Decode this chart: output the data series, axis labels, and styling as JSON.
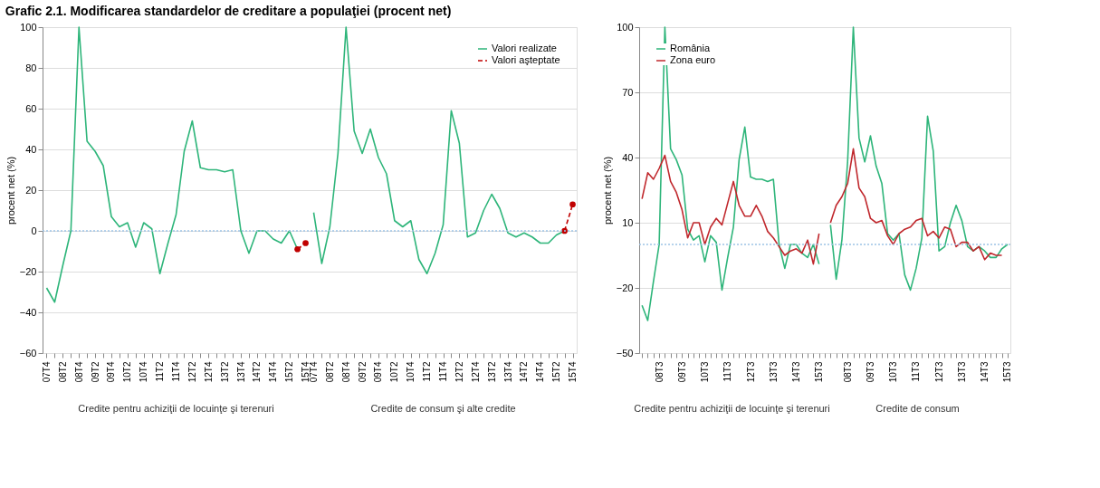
{
  "chart_data": [
    {
      "type": "line",
      "title": "Grafic 2.1. Modificarea standardelor de creditare a populaţiei (procent net)",
      "ylabel": "procent net (%)",
      "categories": [
        "07T4",
        null,
        "08T2",
        null,
        "08T4",
        null,
        "09T2",
        null,
        "09T4",
        null,
        "10T2",
        null,
        "10T4",
        null,
        "11T2",
        null,
        "11T4",
        null,
        "12T2",
        null,
        "12T4",
        null,
        "13T2",
        null,
        "13T4",
        null,
        "14T2",
        null,
        "14T4",
        null,
        "15T2",
        null,
        "15T4",
        "07T4",
        null,
        "08T2",
        null,
        "08T4",
        null,
        "09T2",
        null,
        "09T4",
        null,
        "10T2",
        null,
        "10T4",
        null,
        "11T2",
        null,
        "11T4",
        null,
        "12T2",
        null,
        "12T4",
        null,
        "13T2",
        null,
        "13T4",
        null,
        "14T2",
        null,
        "14T4",
        null,
        "15T2",
        null,
        "15T4"
      ],
      "series": [
        {
          "name": "Valori realizate",
          "color": "#2eb57a",
          "values": [
            -28,
            -35,
            -17,
            0,
            100,
            44,
            39,
            32,
            7,
            2,
            4,
            -8,
            4,
            1,
            -21,
            -6,
            8,
            39,
            54,
            31,
            30,
            30,
            29,
            30,
            0,
            -11,
            0,
            0,
            -4,
            -6,
            0,
            -9,
            null,
            9,
            -16,
            2,
            38,
            100,
            49,
            38,
            50,
            36,
            28,
            5,
            2,
            5,
            -14,
            -21,
            -11,
            3,
            59,
            43,
            -3,
            -1,
            10,
            18,
            11,
            -1,
            -3,
            -1,
            -3,
            -6,
            -6,
            -2,
            0,
            null
          ]
        },
        {
          "name": "Valori aşteptate",
          "color": "#c00000",
          "line_style": "dashed",
          "marker": "circle",
          "values": [
            null,
            null,
            null,
            null,
            null,
            null,
            null,
            null,
            null,
            null,
            null,
            null,
            null,
            null,
            null,
            null,
            null,
            null,
            null,
            null,
            null,
            null,
            null,
            null,
            null,
            null,
            null,
            null,
            null,
            null,
            null,
            -9,
            -6,
            null,
            null,
            null,
            null,
            null,
            null,
            null,
            null,
            null,
            null,
            null,
            null,
            null,
            null,
            null,
            null,
            null,
            null,
            null,
            null,
            null,
            null,
            null,
            null,
            null,
            null,
            null,
            null,
            null,
            null,
            null,
            0,
            13
          ]
        }
      ],
      "ylim": [
        -60,
        100
      ],
      "yticks": [
        -60,
        -40,
        -20,
        0,
        20,
        40,
        60,
        80,
        100
      ],
      "grid": "y",
      "legend": "top right",
      "ref_lines": [
        {
          "axis": "y",
          "value": 0,
          "color": "#9dc3e6",
          "line_style": "dotted"
        }
      ],
      "annotations": [
        "Credite pentru achiziţii de locuinţe şi terenuri",
        "Credite de consum şi alte credite"
      ]
    },
    {
      "type": "line",
      "ylabel": "procent net (%)",
      "categories": [
        null,
        null,
        null,
        "08T3",
        null,
        null,
        null,
        "09T3",
        null,
        null,
        null,
        "10T3",
        null,
        null,
        null,
        "11T3",
        null,
        null,
        null,
        "12T3",
        null,
        null,
        null,
        "13T3",
        null,
        null,
        null,
        "14T3",
        null,
        null,
        null,
        "15T3",
        null,
        null,
        null,
        null,
        "08T3",
        null,
        null,
        null,
        "09T3",
        null,
        null,
        null,
        "10T3",
        null,
        null,
        null,
        "11T3",
        null,
        null,
        null,
        "12T3",
        null,
        null,
        null,
        "13T3",
        null,
        null,
        null,
        "14T3",
        null,
        null,
        null,
        "15T3"
      ],
      "series": [
        {
          "name": "România",
          "color": "#2eb57a",
          "values": [
            -28,
            -35,
            -17,
            0,
            100,
            44,
            39,
            32,
            7,
            2,
            4,
            -8,
            4,
            1,
            -21,
            -6,
            8,
            39,
            54,
            31,
            30,
            30,
            29,
            30,
            0,
            -11,
            0,
            0,
            -4,
            -6,
            0,
            -9,
            null,
            9,
            -16,
            2,
            38,
            100,
            49,
            38,
            50,
            36,
            28,
            5,
            2,
            5,
            -14,
            -21,
            -11,
            3,
            59,
            43,
            -3,
            -1,
            10,
            18,
            11,
            -1,
            -3,
            -1,
            -3,
            -6,
            -6,
            -2,
            0
          ]
        },
        {
          "name": "Zona euro",
          "color": "#c0282d",
          "values": [
            21,
            33,
            30,
            35,
            41,
            29,
            24,
            16,
            3,
            10,
            10,
            0,
            8,
            12,
            9,
            19,
            29,
            18,
            13,
            13,
            18,
            13,
            6,
            3,
            -1,
            -5,
            -3,
            -2,
            -4,
            2,
            -9,
            5,
            null,
            10,
            18,
            22,
            28,
            44,
            26,
            22,
            12,
            10,
            11,
            4,
            0,
            5,
            7,
            8,
            11,
            12,
            4,
            6,
            3,
            8,
            7,
            -1,
            1,
            1,
            -3,
            -1,
            -7,
            -4,
            -5,
            -5,
            null
          ]
        }
      ],
      "ylim": [
        -50,
        100
      ],
      "yticks": [
        -50,
        -20,
        10,
        40,
        70,
        100
      ],
      "grid": "y",
      "legend": "top left",
      "ref_lines": [
        {
          "axis": "y",
          "value": 0,
          "color": "#9dc3e6",
          "line_style": "dotted"
        }
      ],
      "annotations": [
        "Credite pentru achiziţii de locuinţe şi terenuri",
        "Credite de consum"
      ]
    }
  ]
}
